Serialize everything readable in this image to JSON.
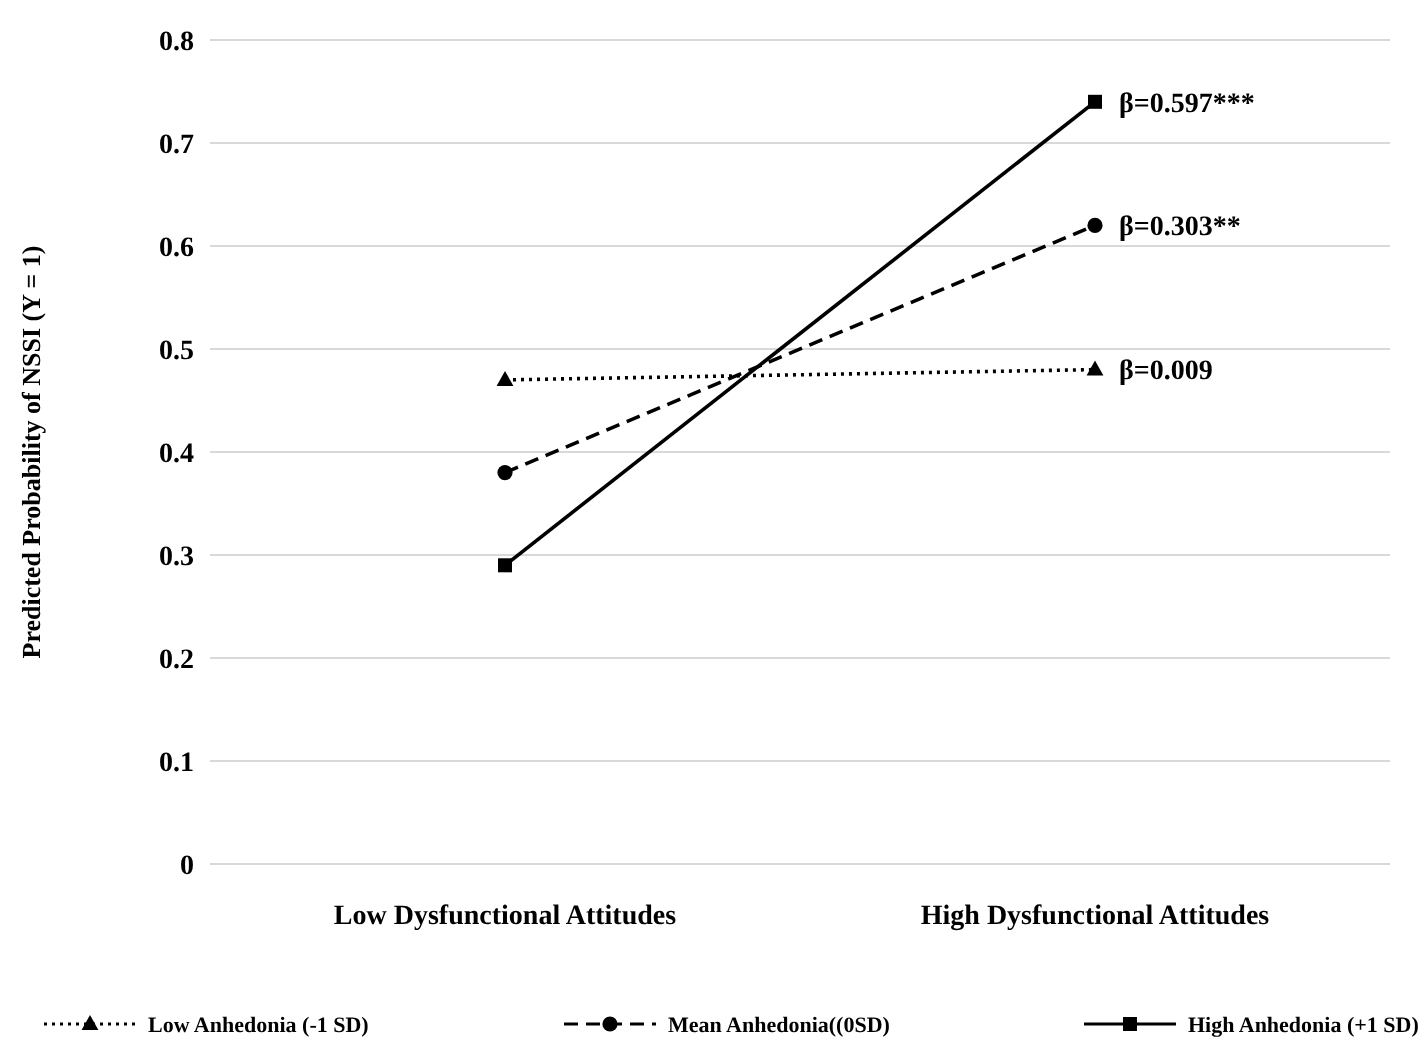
{
  "chart_data": {
    "type": "line",
    "ylabel": "Predicted Probability of NSSI     (Y = 1)",
    "categories": [
      "Low Dysfunctional Attitudes",
      "High Dysfunctional Attitudes"
    ],
    "series": [
      {
        "name": "Low Anhedonia (-1 SD)",
        "color": "#000000",
        "values": [
          0.47,
          0.48
        ],
        "marker": "triangle",
        "line_style": "dotted"
      },
      {
        "name": "Mean Anhedonia((0SD)",
        "color": "#000000",
        "values": [
          0.38,
          0.62
        ],
        "marker": "circle",
        "line_style": "dashed"
      },
      {
        "name": "High Anhedonia (+1 SD)",
        "color": "#000000",
        "values": [
          0.29,
          0.74
        ],
        "marker": "square",
        "line_style": "solid"
      }
    ],
    "ylim": [
      0,
      0.8
    ],
    "yticks": [
      0,
      0.1,
      0.2,
      0.3,
      0.4,
      0.5,
      0.6,
      0.7,
      0.8
    ],
    "grid": "y",
    "legend": "bottom",
    "annotations": [
      {
        "text": "β=0.597***",
        "x": "High Dysfunctional Attitudes",
        "y": 0.74
      },
      {
        "text": "β=0.303**",
        "x": "High Dysfunctional Attitudes",
        "y": 0.62
      },
      {
        "text": "β=0.009",
        "x": "High Dysfunctional Attitudes",
        "y": 0.48
      }
    ]
  }
}
